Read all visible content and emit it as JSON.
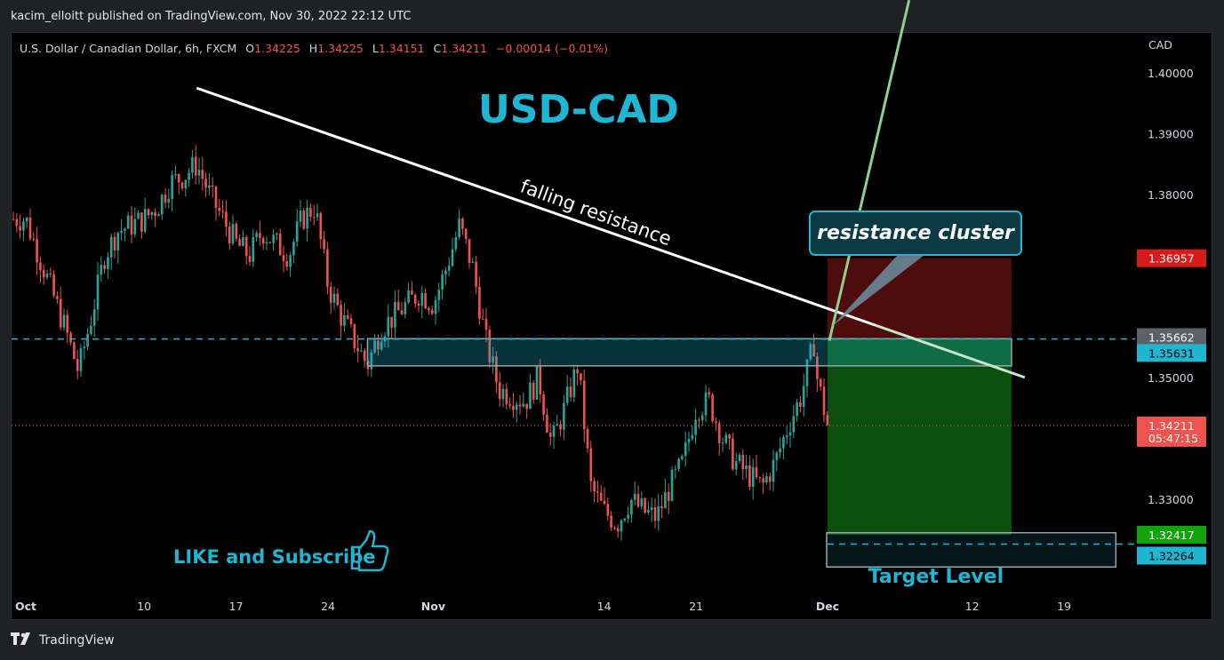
{
  "header": {
    "published": "kacim_elloitt published on TradingView.com, Nov 30, 2022 22:12 UTC"
  },
  "legend": {
    "symbol": "U.S. Dollar / Canadian Dollar, 6h, FXCM",
    "o_label": "O",
    "o_value": "1.34225",
    "h_label": "H",
    "h_value": "1.34225",
    "l_label": "L",
    "l_value": "1.34151",
    "c_label": "C",
    "c_value": "1.34211",
    "change": "−0.00014 (−0.01%)"
  },
  "annotations": {
    "title": "USD-CAD",
    "falling_resistance": "falling resistance",
    "resistance_cluster": "resistance cluster",
    "like_subscribe": "LIKE and Subscribe",
    "target_level": "Target Level"
  },
  "price_tags": {
    "stop": "1.36957",
    "level_a": "1.35662",
    "level_b": "1.35631",
    "last_price": "1.34211",
    "countdown": "05:47:15",
    "target_a": "1.32417",
    "target_b": "1.32264"
  },
  "colors": {
    "bull": "#26a69a",
    "bear": "#ef5350",
    "accent": "#1fb6d3",
    "background": "#000000"
  },
  "footer": {
    "brand": "TradingView"
  },
  "chart_data": {
    "type": "candlestick",
    "currency": "CAD",
    "ylim": [
      1.315,
      1.404
    ],
    "y_ticks": [
      "1.40000",
      "1.39000",
      "1.38000",
      "1.35000",
      "1.33000"
    ],
    "x_ticks": [
      {
        "label": "Oct",
        "date": "2022-10-01"
      },
      {
        "label": "10",
        "date": "2022-10-10"
      },
      {
        "label": "17",
        "date": "2022-10-17"
      },
      {
        "label": "24",
        "date": "2022-10-24"
      },
      {
        "label": "Nov",
        "date": "2022-11-01"
      },
      {
        "label": "14",
        "date": "2022-11-14"
      },
      {
        "label": "21",
        "date": "2022-11-21"
      },
      {
        "label": "Dec",
        "date": "2022-12-01"
      },
      {
        "label": "12",
        "date": "2022-12-12"
      },
      {
        "label": "19",
        "date": "2022-12-19"
      }
    ],
    "close_path": [
      [
        "2022-10-01",
        1.376
      ],
      [
        "2022-10-02",
        1.37
      ],
      [
        "2022-10-03",
        1.364
      ],
      [
        "2022-10-04",
        1.358
      ],
      [
        "2022-10-05",
        1.351
      ],
      [
        "2022-10-06",
        1.36
      ],
      [
        "2022-10-07",
        1.37
      ],
      [
        "2022-10-08",
        1.374
      ],
      [
        "2022-10-10",
        1.376
      ],
      [
        "2022-10-11",
        1.378
      ],
      [
        "2022-10-12",
        1.382
      ],
      [
        "2022-10-13",
        1.383
      ],
      [
        "2022-10-14",
        1.385
      ],
      [
        "2022-10-15",
        1.38
      ],
      [
        "2022-10-16",
        1.376
      ],
      [
        "2022-10-17",
        1.372
      ],
      [
        "2022-10-18",
        1.37
      ],
      [
        "2022-10-19",
        1.374
      ],
      [
        "2022-10-20",
        1.372
      ],
      [
        "2022-10-21",
        1.37
      ],
      [
        "2022-10-22",
        1.376
      ],
      [
        "2022-10-23",
        1.378
      ],
      [
        "2022-10-24",
        1.365
      ],
      [
        "2022-10-25",
        1.36
      ],
      [
        "2022-10-26",
        1.356
      ],
      [
        "2022-10-27",
        1.352
      ],
      [
        "2022-10-28",
        1.358
      ],
      [
        "2022-10-29",
        1.36
      ],
      [
        "2022-10-30",
        1.362
      ],
      [
        "2022-10-31",
        1.364
      ],
      [
        "2022-11-01",
        1.362
      ],
      [
        "2022-11-02",
        1.368
      ],
      [
        "2022-11-03",
        1.375
      ],
      [
        "2022-11-04",
        1.368
      ],
      [
        "2022-11-05",
        1.356
      ],
      [
        "2022-11-06",
        1.348
      ],
      [
        "2022-11-07",
        1.347
      ],
      [
        "2022-11-08",
        1.346
      ],
      [
        "2022-11-09",
        1.35
      ],
      [
        "2022-11-10",
        1.339
      ],
      [
        "2022-11-11",
        1.345
      ],
      [
        "2022-11-12",
        1.352
      ],
      [
        "2022-11-13",
        1.332
      ],
      [
        "2022-11-14",
        1.328
      ],
      [
        "2022-11-15",
        1.326
      ],
      [
        "2022-11-16",
        1.33
      ],
      [
        "2022-11-17",
        1.328
      ],
      [
        "2022-11-18",
        1.327
      ],
      [
        "2022-11-19",
        1.332
      ],
      [
        "2022-11-20",
        1.336
      ],
      [
        "2022-11-21",
        1.345
      ],
      [
        "2022-11-22",
        1.346
      ],
      [
        "2022-11-23",
        1.34
      ],
      [
        "2022-11-24",
        1.336
      ],
      [
        "2022-11-25",
        1.334
      ],
      [
        "2022-11-26",
        1.332
      ],
      [
        "2022-11-27",
        1.336
      ],
      [
        "2022-11-28",
        1.342
      ],
      [
        "2022-11-29",
        1.347
      ],
      [
        "2022-11-30",
        1.356
      ],
      [
        "2022-11-30",
        1.352
      ],
      [
        "2022-12-01",
        1.3421
      ]
    ],
    "falling_resistance_line": [
      [
        "2022-10-14",
        1.3975
      ],
      [
        "2022-12-16",
        1.35
      ]
    ],
    "resistance_zone": {
      "from": "2022-10-27",
      "to": "2022-12-15",
      "top": 1.3565,
      "bottom": 1.3535
    },
    "target_zone": {
      "from": "2022-12-01",
      "to": "2022-12-23",
      "top": 1.3245,
      "bottom": 1.3215
    },
    "stop_zone": {
      "from": "2022-12-01",
      "to": "2022-12-15",
      "top": 1.36957,
      "bottom": 1.35631
    },
    "profit_zone": {
      "from": "2022-12-01",
      "to": "2022-12-15",
      "top": 1.35631,
      "bottom": 1.32417
    },
    "entry_dashed": 1.35631,
    "target_dashed": 1.32264,
    "last_price_line": 1.34211
  }
}
